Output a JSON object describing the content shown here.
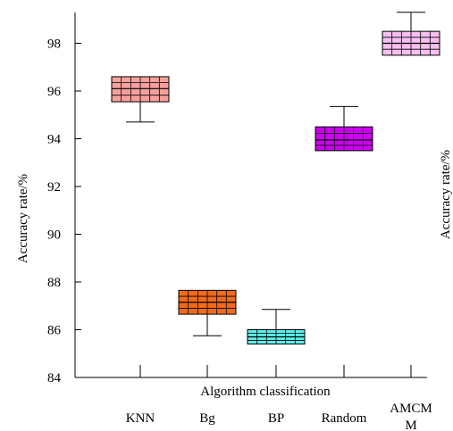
{
  "chart_data": {
    "type": "box",
    "categories": [
      "KNN",
      "Bg",
      "BP",
      "Random",
      "AMCMM"
    ],
    "category_labels": [
      [
        "KNN"
      ],
      [
        "Bg"
      ],
      [
        "BP"
      ],
      [
        "Random"
      ],
      [
        "AMCM",
        "M"
      ]
    ],
    "boxes": [
      {
        "category": "KNN",
        "q1": 95.55,
        "q3": 96.6,
        "median": 96.1,
        "whisker_low": 94.7,
        "whisker_high": 96.6,
        "color": "#f4a09c"
      },
      {
        "category": "Bg",
        "q1": 86.65,
        "q3": 87.65,
        "median": 87.15,
        "whisker_low": 85.75,
        "whisker_high": 87.65,
        "color": "#f26a1b"
      },
      {
        "category": "BP",
        "q1": 85.4,
        "q3": 86.0,
        "median": 85.7,
        "whisker_low": 85.4,
        "whisker_high": 86.85,
        "color": "#5ef0ea"
      },
      {
        "category": "Random",
        "q1": 93.5,
        "q3": 94.5,
        "median": 93.95,
        "whisker_low": 93.5,
        "whisker_high": 95.35,
        "color": "#cc00ee"
      },
      {
        "category": "AMCMM",
        "q1": 97.5,
        "q3": 98.5,
        "median": 98.0,
        "whisker_low": 97.5,
        "whisker_high": 99.3,
        "color": "#f7bff0"
      }
    ],
    "ylim": [
      84,
      99.4
    ],
    "yticks": [
      "84",
      "86",
      "88",
      "90",
      "92",
      "94",
      "96",
      "98"
    ],
    "ytick_values": [
      84,
      86,
      88,
      90,
      92,
      94,
      96,
      98
    ],
    "ylabel": "Accuracy rate/%",
    "ylabel_right": "Accuracy rate/%",
    "xlabel": "Algorithm classification",
    "grid": false,
    "box_pattern": "grid"
  }
}
